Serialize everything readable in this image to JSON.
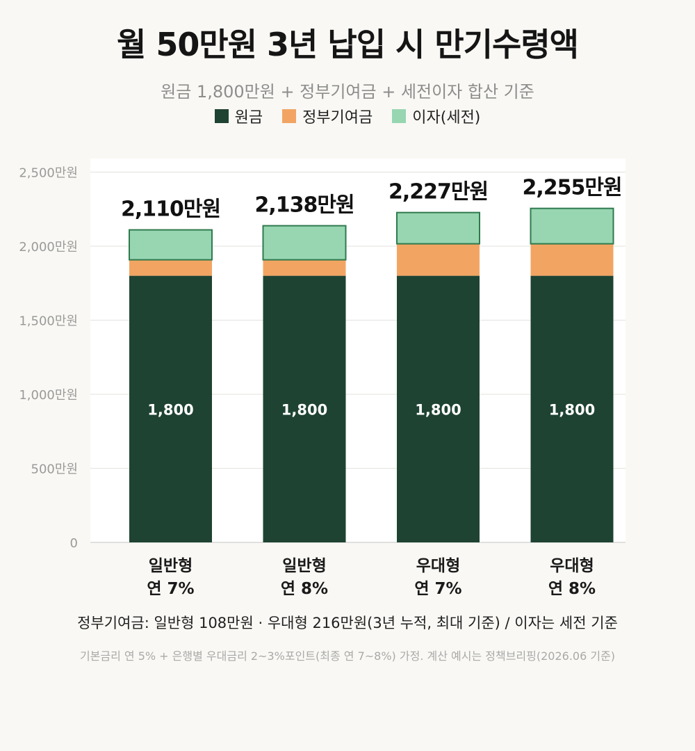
{
  "header": {
    "title": "월 50만원 3년 납입 시 만기수령액",
    "subtitle": "원금 1,800만원 + 정부기여금 + 세전이자 합산 기준"
  },
  "legend": [
    {
      "label": "원금",
      "color": "#1e4332"
    },
    {
      "label": "정부기여금",
      "color": "#f2a563"
    },
    {
      "label": "이자(세전)",
      "color": "#97d6b1"
    }
  ],
  "chart_data": {
    "type": "bar",
    "stacked": true,
    "categories": [
      [
        "일반형",
        "연 7%"
      ],
      [
        "일반형",
        "연 8%"
      ],
      [
        "우대형",
        "연 7%"
      ],
      [
        "우대형",
        "연 8%"
      ]
    ],
    "series": [
      {
        "name": "원금",
        "values": [
          1800,
          1800,
          1800,
          1800
        ],
        "color": "#1e4332"
      },
      {
        "name": "정부기여금",
        "values": [
          108,
          108,
          216,
          216
        ],
        "color": "#f2a563"
      },
      {
        "name": "이자(세전)",
        "values": [
          202,
          230,
          211,
          239
        ],
        "color": "#97d6b1"
      }
    ],
    "totals": [
      2110,
      2138,
      2227,
      2255
    ],
    "total_labels": [
      "2,110만원",
      "2,138만원",
      "2,227만원",
      "2,255만원"
    ],
    "principal_labels": [
      "1,800",
      "1,800",
      "1,800",
      "1,800"
    ],
    "yticks": [
      0,
      500,
      1000,
      1500,
      2000,
      2500
    ],
    "ytick_labels": [
      "0",
      "500만원",
      "1,000만원",
      "1,500만원",
      "2,000만원",
      "2,500만원"
    ],
    "ylim": [
      0,
      2500
    ],
    "grid": true
  },
  "footer": {
    "note": "정부기여금: 일반형 108만원 · 우대형 216만원(3년 누적, 최대 기준) / 이자는 세전 기준",
    "footnote": "기본금리 연 5% + 은행별 우대금리 2~3%포인트(최종 연 7~8%) 가정. 계산 예시는 정책브리핑(2026.06 기준)"
  }
}
